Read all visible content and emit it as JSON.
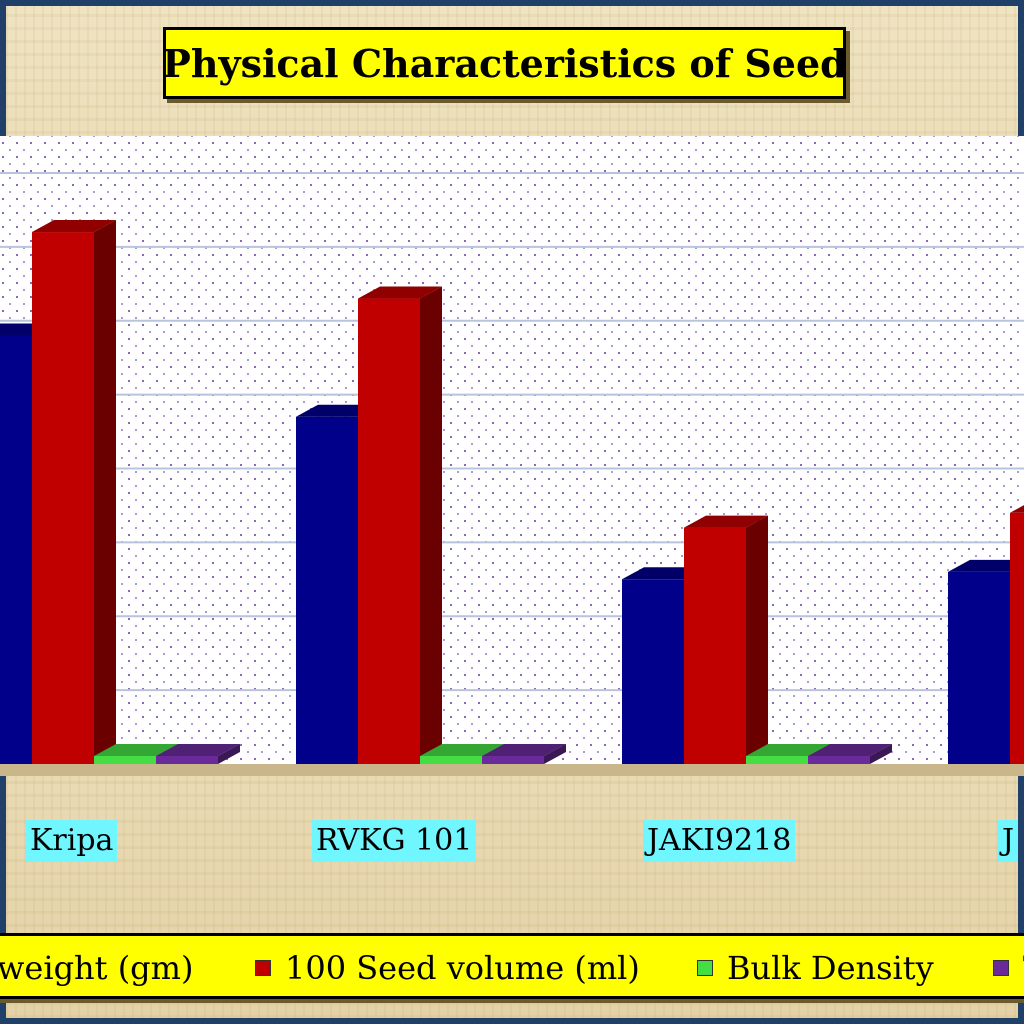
{
  "chart_data": {
    "type": "bar",
    "title": "Physical Characteristics of Seed",
    "categories": [
      "Kripa",
      "RVKG 101",
      "JAKI9218",
      "J"
    ],
    "series": [
      {
        "name": "weight (gm)",
        "values": [
          58,
          47,
          25,
          26
        ],
        "color": "#00008b"
      },
      {
        "name": "100 Seed volume (ml)",
        "values": [
          72,
          63,
          32,
          34
        ],
        "color": "#c00000"
      },
      {
        "name": "Bulk Density",
        "values": [
          0.8,
          0.8,
          0.8,
          0.8
        ],
        "color": "#44dd44"
      },
      {
        "name": "T",
        "values": [
          0.8,
          0.8,
          0.8,
          0.8
        ],
        "color": "#6a2a9a"
      }
    ],
    "ylim": [
      0,
      85
    ],
    "grid": true,
    "legend_position": "bottom",
    "xlabel": "",
    "ylabel": ""
  }
}
